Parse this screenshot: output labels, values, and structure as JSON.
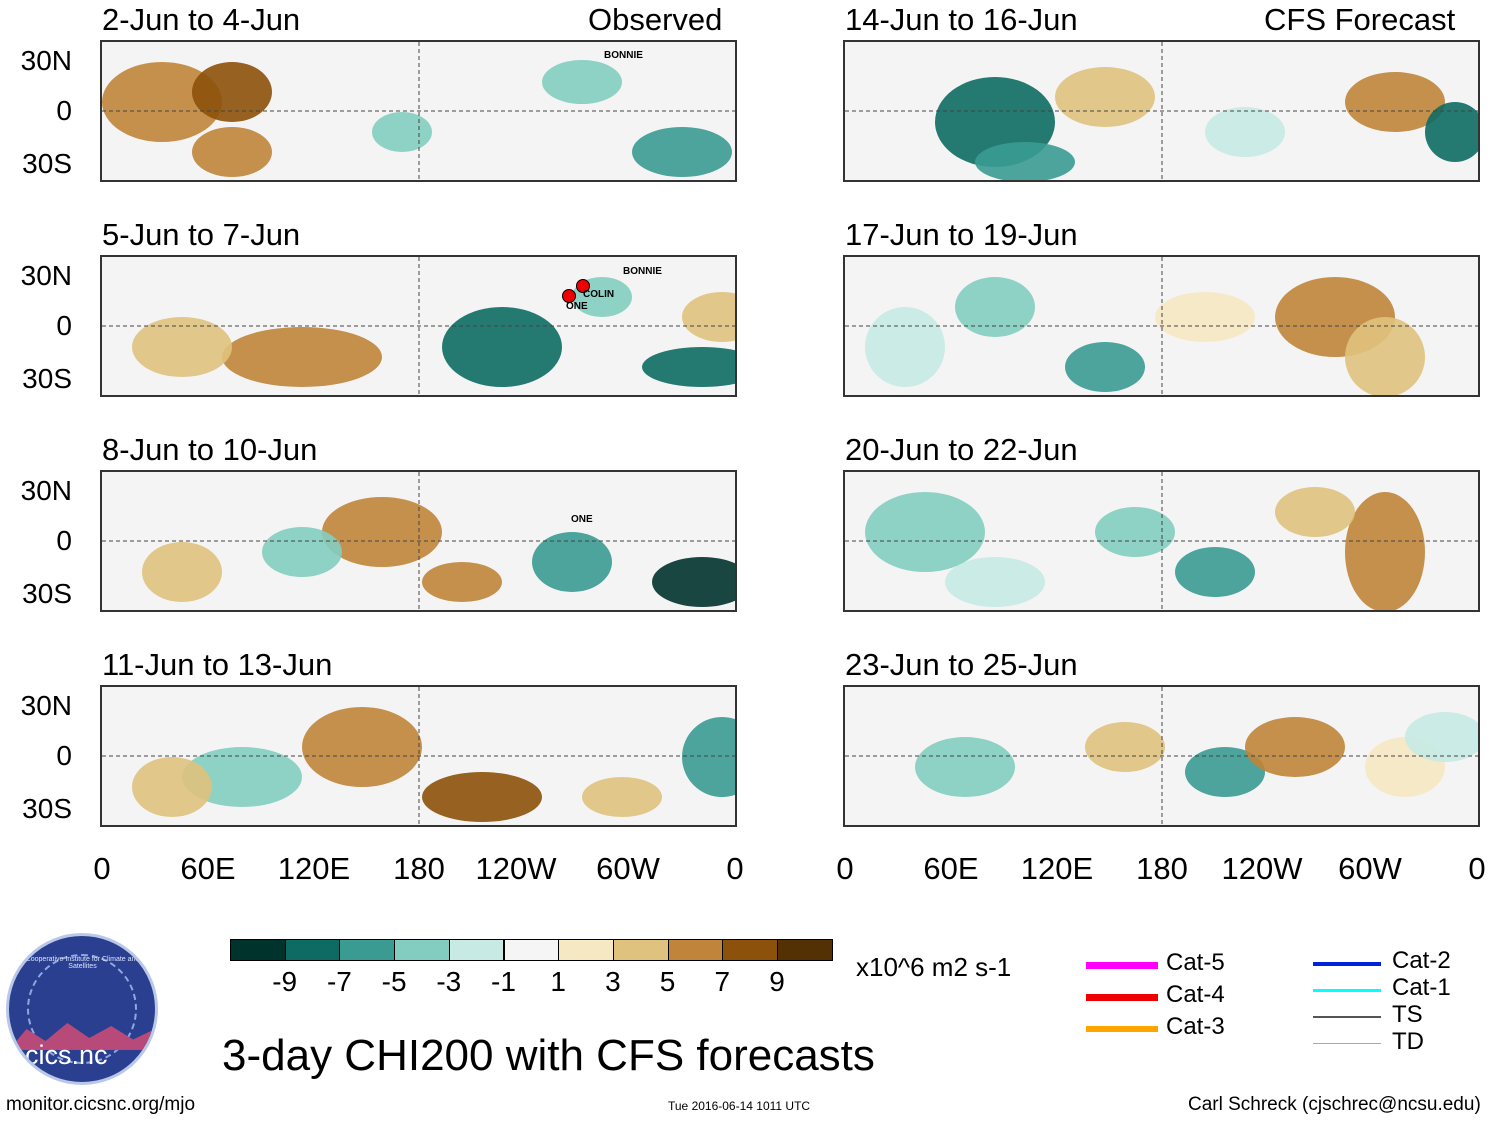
{
  "top_labels": {
    "left": "Observed",
    "right": "CFS Forecast"
  },
  "panels": [
    {
      "title": "2-Jun to 4-Jun",
      "storms": [
        "BONNIE"
      ]
    },
    {
      "title": "5-Jun to 7-Jun",
      "storms": [
        "BONNIE",
        "COLIN",
        "ONE"
      ]
    },
    {
      "title": "8-Jun to 10-Jun",
      "storms": [
        "ONE"
      ]
    },
    {
      "title": "11-Jun to 13-Jun",
      "storms": []
    },
    {
      "title": "14-Jun to 16-Jun",
      "storms": []
    },
    {
      "title": "17-Jun to 19-Jun",
      "storms": []
    },
    {
      "title": "20-Jun to 22-Jun",
      "storms": []
    },
    {
      "title": "23-Jun to 25-Jun",
      "storms": []
    }
  ],
  "y_ticks": [
    "30N",
    "0",
    "30S"
  ],
  "x_ticks": [
    "0",
    "60E",
    "120E",
    "180",
    "120W",
    "60W",
    "0"
  ],
  "colorbar": {
    "colors": [
      "#01332d",
      "#0d6b63",
      "#3a9b92",
      "#83cdc0",
      "#c7eae4",
      "#f5f5f5",
      "#f6e8c3",
      "#dfc27d",
      "#c0843a",
      "#8c510a",
      "#543005"
    ],
    "labels": [
      "-9",
      "-7",
      "-5",
      "-3",
      "-1",
      "1",
      "3",
      "5",
      "7",
      "9"
    ],
    "units": "x10^6 m2 s-1"
  },
  "title": "3-day CHI200 with CFS forecasts",
  "legend": [
    {
      "label": "Cat-5",
      "color": "#ff00ff"
    },
    {
      "label": "Cat-4",
      "color": "#ee0000"
    },
    {
      "label": "Cat-3",
      "color": "#ffa500"
    },
    {
      "label": "Cat-2",
      "color": "#0022dd"
    },
    {
      "label": "Cat-1",
      "color": "#00ffff"
    },
    {
      "label": "TS",
      "color": "#555555"
    },
    {
      "label": "TD",
      "color": "#aaaaaa"
    }
  ],
  "logo": {
    "text": "cics.nc",
    "ring_text": "Cooperative Institute for Climate and Satellites"
  },
  "footer": {
    "left": "monitor.cicsnc.org/mjo",
    "center": "Tue 2016-06-14 1011 UTC",
    "right": "Carl Schreck (cjschrec@ncsu.edu)"
  }
}
